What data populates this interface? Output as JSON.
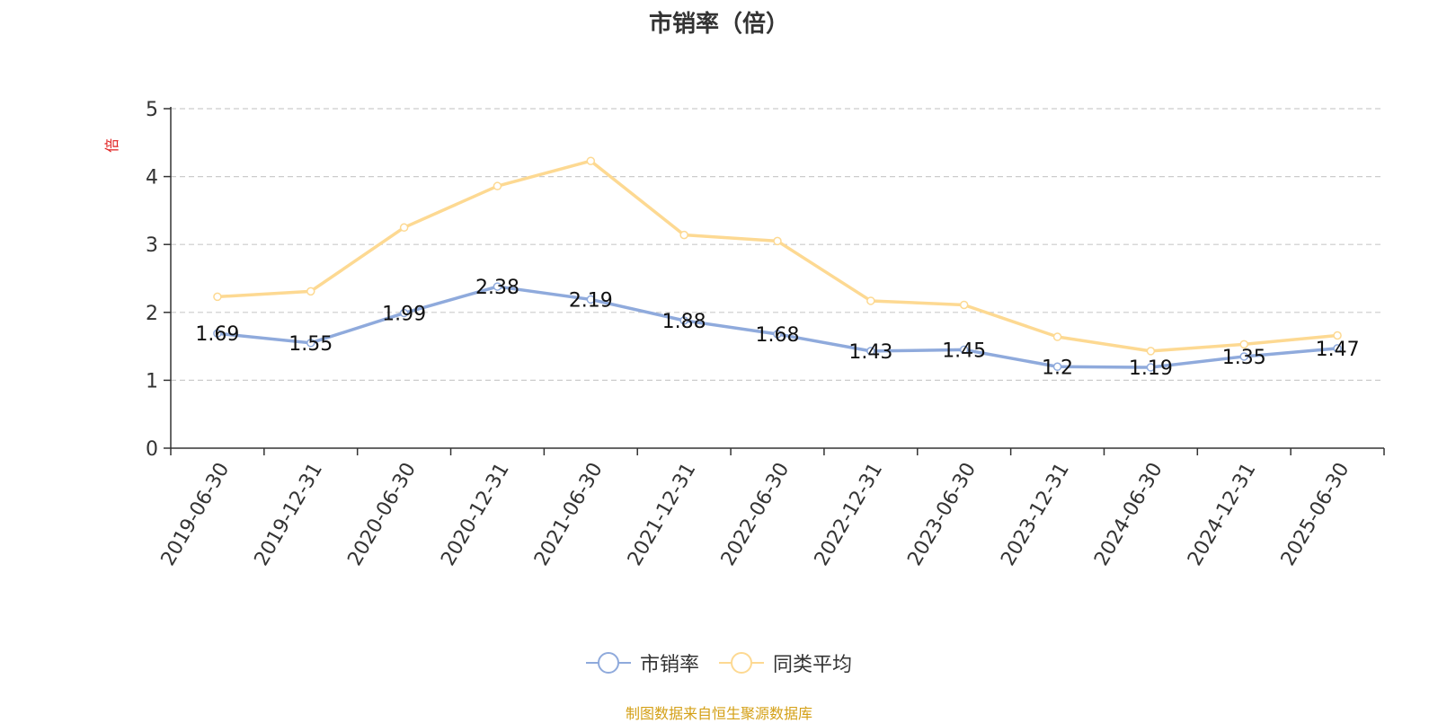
{
  "chart_data": {
    "type": "line",
    "title": "市销率（倍）",
    "ylabel": "倍",
    "ylim": [
      0,
      5
    ],
    "yticks": [
      0,
      1,
      2,
      3,
      4,
      5
    ],
    "grid": true,
    "legend_position": "bottom",
    "categories": [
      "2019-06-30",
      "2019-12-31",
      "2020-06-30",
      "2020-12-31",
      "2021-06-30",
      "2021-12-31",
      "2022-06-30",
      "2022-12-31",
      "2023-06-30",
      "2023-12-31",
      "2024-06-30",
      "2024-12-31",
      "2025-06-30"
    ],
    "series": [
      {
        "name": "市销率",
        "color": "#8faadc",
        "show_labels": true,
        "values": [
          1.69,
          1.55,
          1.99,
          2.38,
          2.19,
          1.88,
          1.68,
          1.43,
          1.45,
          1.2,
          1.19,
          1.35,
          1.47
        ]
      },
      {
        "name": "同类平均",
        "color": "#fdd992",
        "show_labels": false,
        "values": [
          2.23,
          2.31,
          3.25,
          3.86,
          4.23,
          3.14,
          3.05,
          2.17,
          2.11,
          1.64,
          1.43,
          1.53,
          1.66
        ]
      }
    ]
  },
  "footer": "制图数据来自恒生聚源数据库"
}
